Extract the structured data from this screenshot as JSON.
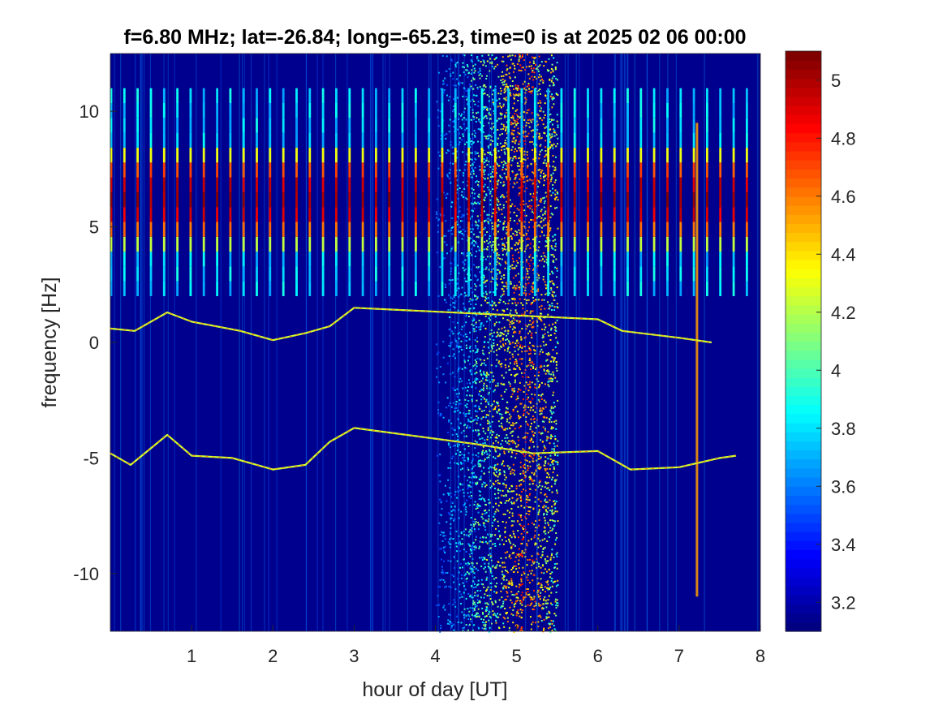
{
  "chart_data": {
    "type": "heatmap",
    "title": "f=6.80 MHz;  lat=-26.84; long=-65.23, time=0 is at 2025 02 06 00:00",
    "xlabel": "hour of day [UT]",
    "ylabel": "frequency [Hz]",
    "xlim": [
      0,
      8
    ],
    "ylim": [
      -12.5,
      12.5
    ],
    "x_ticks": [
      1,
      2,
      3,
      4,
      5,
      6,
      7,
      8
    ],
    "y_ticks": [
      -10,
      -5,
      0,
      5,
      10
    ],
    "colormap": "jet",
    "colorbar": {
      "range": [
        3.1,
        5.1
      ],
      "ticks": [
        3.2,
        3.4,
        3.6,
        3.8,
        4,
        4.2,
        4.4,
        4.6,
        4.8,
        5
      ]
    },
    "features": {
      "pulse_comb": {
        "freq_range": [
          2,
          11
        ],
        "spacing_hours": 0.163,
        "end_hour": 7.85
      },
      "broadband_noise": {
        "hours": [
          4.0,
          5.5
        ],
        "peak_hour": 5.1
      },
      "vertical_spike_hour": 7.22,
      "doppler_trace_near_zero": [
        [
          0.0,
          0.6
        ],
        [
          0.3,
          0.5
        ],
        [
          0.7,
          1.3
        ],
        [
          1.0,
          0.9
        ],
        [
          1.6,
          0.5
        ],
        [
          2.0,
          0.1
        ],
        [
          2.4,
          0.4
        ],
        [
          2.7,
          0.7
        ],
        [
          3.0,
          1.5
        ],
        [
          6.0,
          1.0
        ],
        [
          6.3,
          0.5
        ],
        [
          7.0,
          0.2
        ],
        [
          7.4,
          0.0
        ]
      ],
      "doppler_trace_near_minus5": [
        [
          0.0,
          -4.8
        ],
        [
          0.25,
          -5.3
        ],
        [
          0.7,
          -4.0
        ],
        [
          1.0,
          -4.9
        ],
        [
          1.5,
          -5.0
        ],
        [
          2.0,
          -5.5
        ],
        [
          2.4,
          -5.3
        ],
        [
          2.7,
          -4.3
        ],
        [
          3.0,
          -3.7
        ],
        [
          4.5,
          -4.4
        ],
        [
          5.2,
          -4.8
        ],
        [
          6.0,
          -4.7
        ],
        [
          6.4,
          -5.5
        ],
        [
          7.0,
          -5.4
        ],
        [
          7.5,
          -5.0
        ],
        [
          7.7,
          -4.9
        ]
      ]
    }
  }
}
